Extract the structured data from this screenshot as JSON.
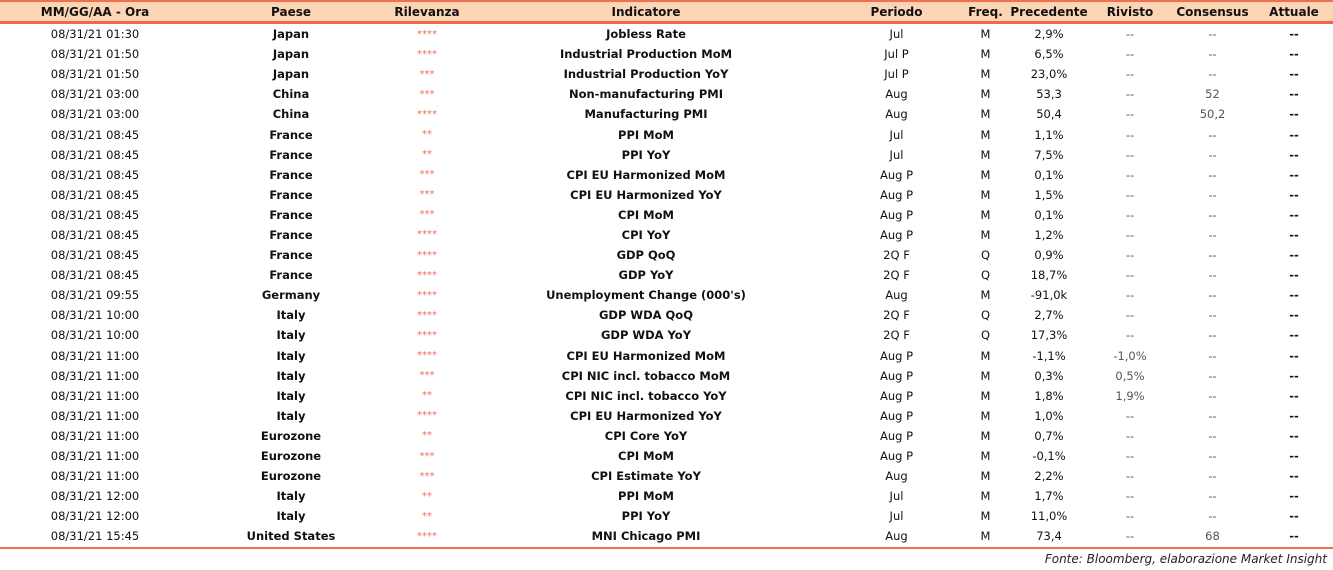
{
  "headers": [
    "MM/GG/AA - Ora",
    "Paese",
    "Rilevanza",
    "Indicatore",
    "Periodo",
    "Freq.",
    "Precedente",
    "Rivisto",
    "Consensus",
    "Attuale"
  ],
  "rows": [
    [
      "08/31/21 01:30",
      "Japan",
      "****",
      "Jobless Rate",
      "Jul",
      "M",
      "2,9%",
      "--",
      "--",
      "--"
    ],
    [
      "08/31/21 01:50",
      "Japan",
      "****",
      "Industrial Production MoM",
      "Jul P",
      "M",
      "6,5%",
      "--",
      "--",
      "--"
    ],
    [
      "08/31/21 01:50",
      "Japan",
      "***",
      "Industrial Production YoY",
      "Jul P",
      "M",
      "23,0%",
      "--",
      "--",
      "--"
    ],
    [
      "08/31/21 03:00",
      "China",
      "***",
      "Non-manufacturing PMI",
      "Aug",
      "M",
      "53,3",
      "--",
      "52",
      "--"
    ],
    [
      "08/31/21 03:00",
      "China",
      "****",
      "Manufacturing PMI",
      "Aug",
      "M",
      "50,4",
      "--",
      "50,2",
      "--"
    ],
    [
      "08/31/21 08:45",
      "France",
      "**",
      "PPI MoM",
      "Jul",
      "M",
      "1,1%",
      "--",
      "--",
      "--"
    ],
    [
      "08/31/21 08:45",
      "France",
      "**",
      "PPI YoY",
      "Jul",
      "M",
      "7,5%",
      "--",
      "--",
      "--"
    ],
    [
      "08/31/21 08:45",
      "France",
      "***",
      "CPI EU Harmonized MoM",
      "Aug P",
      "M",
      "0,1%",
      "--",
      "--",
      "--"
    ],
    [
      "08/31/21 08:45",
      "France",
      "***",
      "CPI EU Harmonized YoY",
      "Aug P",
      "M",
      "1,5%",
      "--",
      "--",
      "--"
    ],
    [
      "08/31/21 08:45",
      "France",
      "***",
      "CPI MoM",
      "Aug P",
      "M",
      "0,1%",
      "--",
      "--",
      "--"
    ],
    [
      "08/31/21 08:45",
      "France",
      "****",
      "CPI YoY",
      "Aug P",
      "M",
      "1,2%",
      "--",
      "--",
      "--"
    ],
    [
      "08/31/21 08:45",
      "France",
      "****",
      "GDP QoQ",
      "2Q F",
      "Q",
      "0,9%",
      "--",
      "--",
      "--"
    ],
    [
      "08/31/21 08:45",
      "France",
      "****",
      "GDP YoY",
      "2Q F",
      "Q",
      "18,7%",
      "--",
      "--",
      "--"
    ],
    [
      "08/31/21 09:55",
      "Germany",
      "****",
      "Unemployment Change (000's)",
      "Aug",
      "M",
      "-91,0k",
      "--",
      "--",
      "--"
    ],
    [
      "08/31/21 10:00",
      "Italy",
      "****",
      "GDP WDA QoQ",
      "2Q F",
      "Q",
      "2,7%",
      "--",
      "--",
      "--"
    ],
    [
      "08/31/21 10:00",
      "Italy",
      "****",
      "GDP WDA YoY",
      "2Q F",
      "Q",
      "17,3%",
      "--",
      "--",
      "--"
    ],
    [
      "08/31/21 11:00",
      "Italy",
      "****",
      "CPI EU Harmonized MoM",
      "Aug P",
      "M",
      "-1,1%",
      "-1,0%",
      "--",
      "--"
    ],
    [
      "08/31/21 11:00",
      "Italy",
      "***",
      "CPI NIC incl. tobacco MoM",
      "Aug P",
      "M",
      "0,3%",
      "0,5%",
      "--",
      "--"
    ],
    [
      "08/31/21 11:00",
      "Italy",
      "**",
      "CPI NIC incl. tobacco YoY",
      "Aug P",
      "M",
      "1,8%",
      "1,9%",
      "--",
      "--"
    ],
    [
      "08/31/21 11:00",
      "Italy",
      "****",
      "CPI EU Harmonized YoY",
      "Aug P",
      "M",
      "1,0%",
      "--",
      "--",
      "--"
    ],
    [
      "08/31/21 11:00",
      "Eurozone",
      "**",
      "CPI Core YoY",
      "Aug P",
      "M",
      "0,7%",
      "--",
      "--",
      "--"
    ],
    [
      "08/31/21 11:00",
      "Eurozone",
      "***",
      "CPI MoM",
      "Aug P",
      "M",
      "-0,1%",
      "--",
      "--",
      "--"
    ],
    [
      "08/31/21 11:00",
      "Eurozone",
      "***",
      "CPI Estimate YoY",
      "Aug",
      "M",
      "2,2%",
      "--",
      "--",
      "--"
    ],
    [
      "08/31/21 12:00",
      "Italy",
      "**",
      "PPI MoM",
      "Jul",
      "M",
      "1,7%",
      "--",
      "--",
      "--"
    ],
    [
      "08/31/21 12:00",
      "Italy",
      "**",
      "PPI YoY",
      "Jul",
      "M",
      "11,0%",
      "--",
      "--",
      "--"
    ],
    [
      "08/31/21 15:45",
      "United States",
      "****",
      "MNI Chicago PMI",
      "Aug",
      "M",
      "73,4",
      "--",
      "68",
      "--"
    ]
  ],
  "footer": "Fonte: Bloomberg, elaborazione Market Insight",
  "colors": {
    "header_bg": "#fcd5b5",
    "accent": "#f06848",
    "stars": "#f26a5a"
  }
}
